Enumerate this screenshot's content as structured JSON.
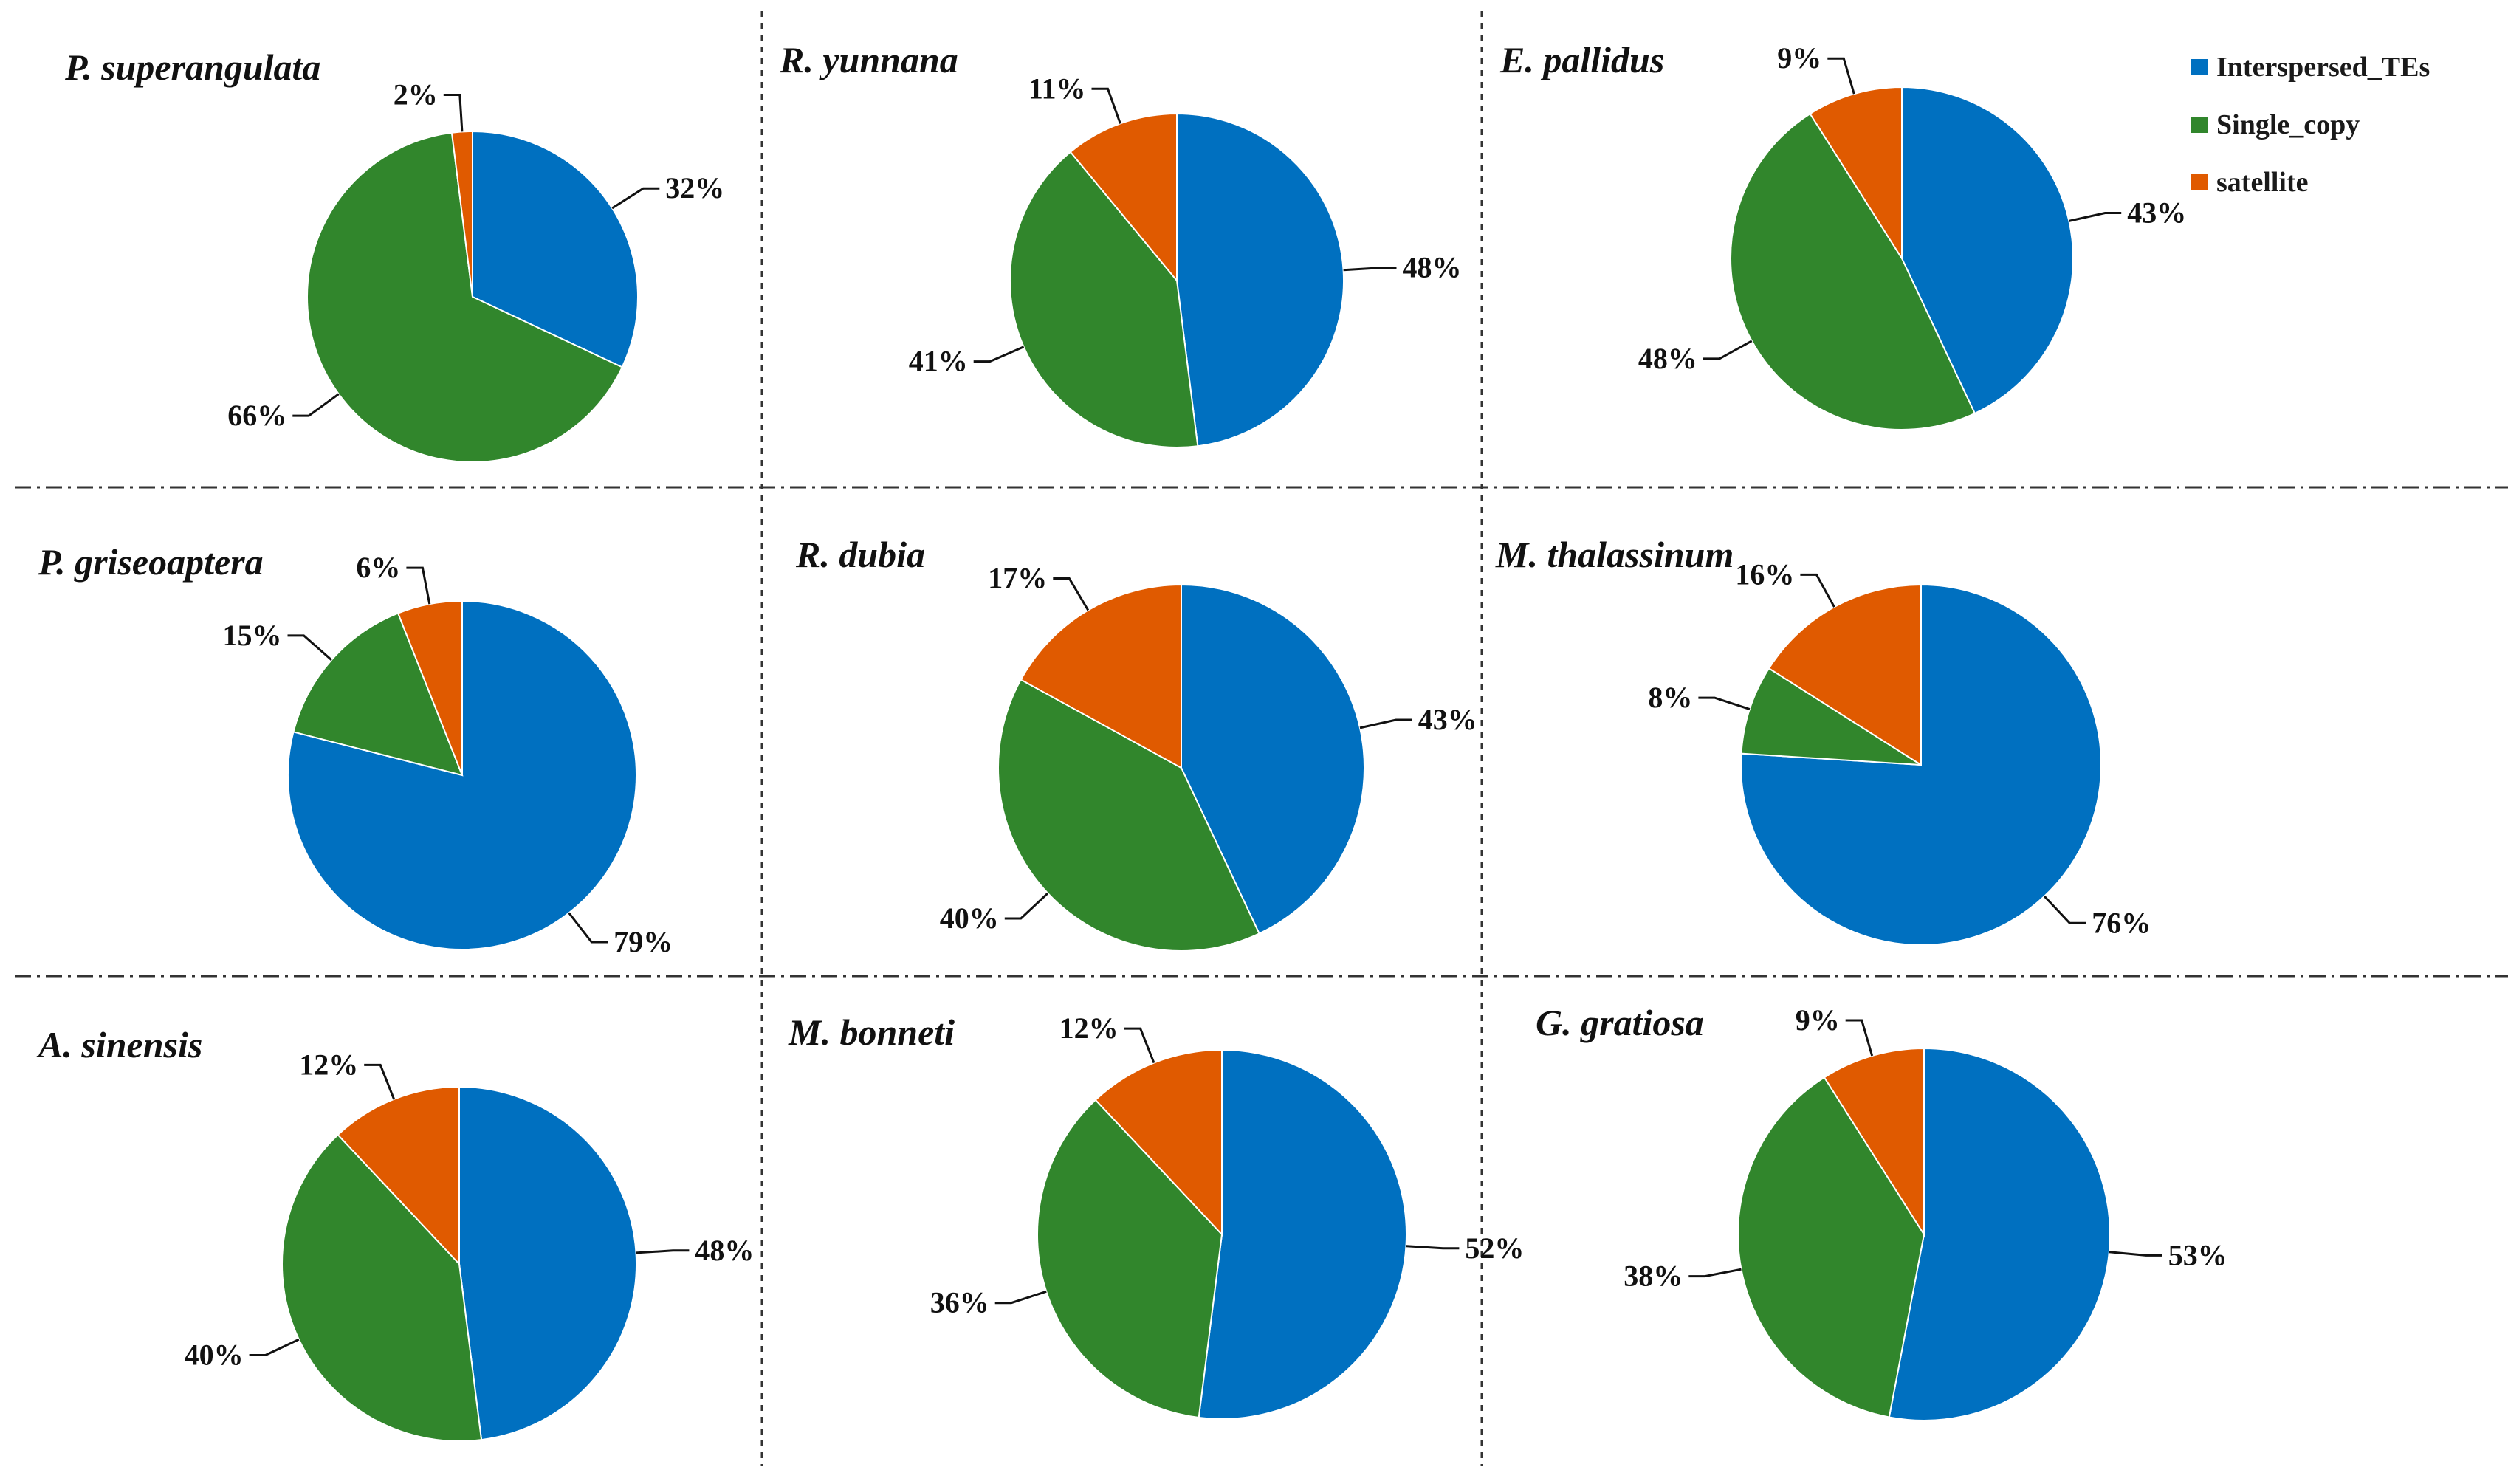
{
  "legend": {
    "items": [
      {
        "name": "Interspersed_TEs",
        "color": "#0070C0"
      },
      {
        "name": "Single_copy",
        "color": "#31862C"
      },
      {
        "name": "satellite",
        "color": "#E05A00"
      }
    ]
  },
  "chart_data": [
    {
      "type": "pie",
      "title": "P. superangulata",
      "categories": [
        "Interspersed_TEs",
        "Single_copy",
        "satellite"
      ],
      "values": [
        32,
        66,
        2
      ],
      "labels": [
        "32%",
        "66%",
        "2%"
      ]
    },
    {
      "type": "pie",
      "title": "R. yunnana",
      "categories": [
        "Interspersed_TEs",
        "Single_copy",
        "satellite"
      ],
      "values": [
        48,
        41,
        11
      ],
      "labels": [
        "48%",
        "41%",
        "11%"
      ]
    },
    {
      "type": "pie",
      "title": "E. pallidus",
      "categories": [
        "Interspersed_TEs",
        "Single_copy",
        "satellite"
      ],
      "values": [
        43,
        48,
        9
      ],
      "labels": [
        "43%",
        "48%",
        "9%"
      ]
    },
    {
      "type": "pie",
      "title": "P. griseoaptera",
      "categories": [
        "Interspersed_TEs",
        "Single_copy",
        "satellite"
      ],
      "values": [
        79,
        15,
        6
      ],
      "labels": [
        "79%",
        "15%",
        "6%"
      ]
    },
    {
      "type": "pie",
      "title": "R. dubia",
      "categories": [
        "Interspersed_TEs",
        "Single_copy",
        "satellite"
      ],
      "values": [
        43,
        40,
        17
      ],
      "labels": [
        "43%",
        "40%",
        "17%"
      ]
    },
    {
      "type": "pie",
      "title": "M. thalassinum",
      "categories": [
        "Interspersed_TEs",
        "Single_copy",
        "satellite"
      ],
      "values": [
        76,
        8,
        16
      ],
      "labels": [
        "76%",
        "8%",
        "16%"
      ]
    },
    {
      "type": "pie",
      "title": "A. sinensis",
      "categories": [
        "Interspersed_TEs",
        "Single_copy",
        "satellite"
      ],
      "values": [
        48,
        40,
        12
      ],
      "labels": [
        "48%",
        "40%",
        "12%"
      ]
    },
    {
      "type": "pie",
      "title": "M. bonneti",
      "categories": [
        "Interspersed_TEs",
        "Single_copy",
        "satellite"
      ],
      "values": [
        52,
        36,
        12
      ],
      "labels": [
        "52%",
        "36%",
        "12%"
      ]
    },
    {
      "type": "pie",
      "title": "G. gratiosa",
      "categories": [
        "Interspersed_TEs",
        "Single_copy",
        "satellite"
      ],
      "values": [
        53,
        38,
        9
      ],
      "labels": [
        "53%",
        "38%",
        "9%"
      ]
    }
  ]
}
